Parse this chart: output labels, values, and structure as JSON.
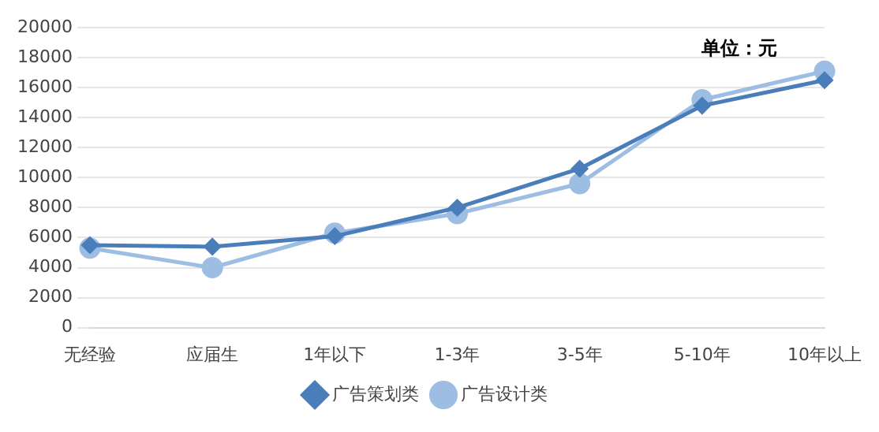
{
  "chart_data": {
    "type": "line",
    "categories": [
      "无经验",
      "应届生",
      "1年以下",
      "1-3年",
      "3-5年",
      "5-10年",
      "10年以上"
    ],
    "series": [
      {
        "name": "广告策划类",
        "color": "#4a7ebb",
        "marker": "diamond",
        "values": [
          5500,
          5400,
          6100,
          8000,
          10600,
          14800,
          16500
        ]
      },
      {
        "name": "广告设计类",
        "color": "#9dbde3",
        "marker": "circle",
        "values": [
          5300,
          4000,
          6300,
          7600,
          9600,
          15200,
          17100
        ]
      }
    ],
    "ylim": [
      0,
      20000
    ],
    "yticks": [
      0,
      2000,
      4000,
      6000,
      8000,
      10000,
      12000,
      14000,
      16000,
      18000,
      20000
    ],
    "grid": "y",
    "legend": "bottom",
    "line_style": "solid",
    "annotations": [
      "单位：元"
    ]
  }
}
